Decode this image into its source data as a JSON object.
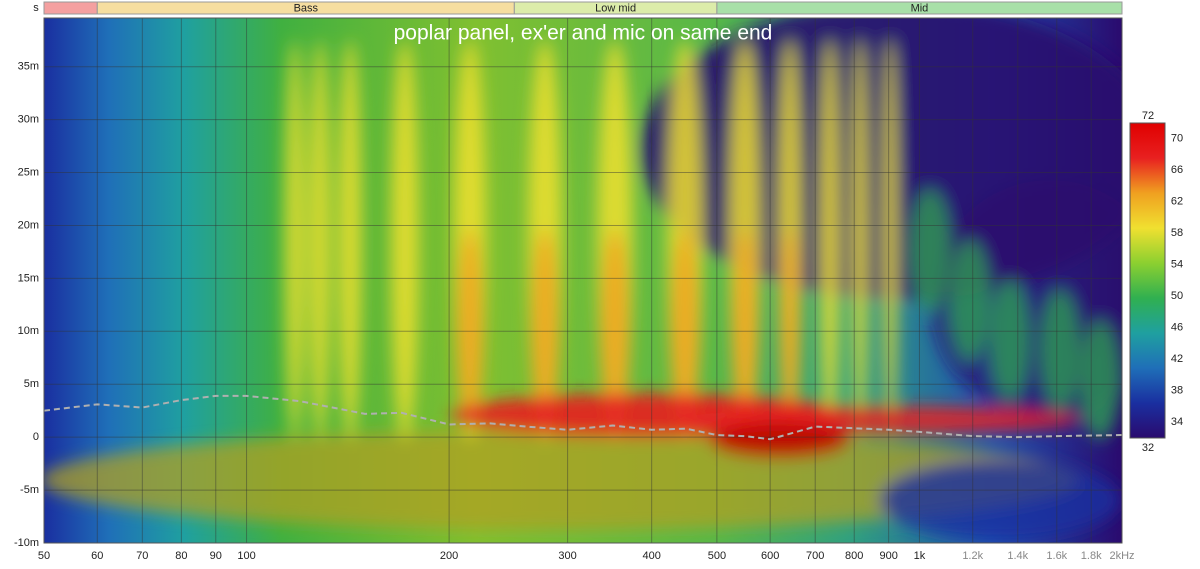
{
  "chart_data": {
    "type": "spectrogram",
    "title": "poplar panel, ex'er and mic on same end",
    "ylabel": "s",
    "log_x": true,
    "grid": true,
    "xlim": [
      50,
      2000
    ],
    "xticks": [
      50,
      60,
      70,
      80,
      90,
      100,
      200,
      300,
      400,
      500,
      600,
      700,
      800,
      900,
      {
        "value": 1000,
        "label": "1k"
      },
      {
        "value": 1200,
        "label": "1.2k"
      },
      {
        "value": 1400,
        "label": "1.4k"
      },
      {
        "value": 1600,
        "label": "1.6k"
      },
      {
        "value": 1800,
        "label": "1.8k"
      },
      {
        "value": 2000,
        "label": "2kHz"
      }
    ],
    "ylim": [
      -0.01,
      0.0396
    ],
    "yticks": [
      {
        "value": -0.01,
        "label": "-10m"
      },
      {
        "value": -0.005,
        "label": "-5m"
      },
      0,
      {
        "value": 0.005,
        "label": "5m"
      },
      {
        "value": 0.01,
        "label": "10m"
      },
      {
        "value": 0.015,
        "label": "15m"
      },
      {
        "value": 0.02,
        "label": "20m"
      },
      {
        "value": 0.025,
        "label": "25m"
      },
      {
        "value": 0.03,
        "label": "30m"
      },
      {
        "value": 0.035,
        "label": "35m"
      }
    ],
    "bands": [
      {
        "name": null,
        "range": [
          50,
          60
        ],
        "color": "#f4a0a0"
      },
      {
        "name": "Bass",
        "range": [
          60,
          250
        ],
        "color": "#f6dea0"
      },
      {
        "name": "Low mid",
        "range": [
          250,
          500
        ],
        "color": "#dcecaa"
      },
      {
        "name": "Mid",
        "range": [
          500,
          2000
        ],
        "color": "#a8e0a8"
      }
    ],
    "colorbar": {
      "lim": [
        32,
        72
      ],
      "ticks": [
        34,
        38,
        42,
        46,
        50,
        54,
        58,
        62,
        66,
        70
      ],
      "colormap": [
        "#2a0a6e",
        "#1a2fa0",
        "#1f6fb8",
        "#1fa0a0",
        "#30b050",
        "#8cd030",
        "#f0e030",
        "#f0a020",
        "#e82020",
        "#e00000"
      ]
    },
    "series": [
      {
        "color": "#b0b0b0",
        "x": [
          50,
          60,
          70,
          80,
          90,
          100,
          120,
          150,
          170,
          200,
          230,
          260,
          300,
          350,
          400,
          450,
          500,
          550,
          600,
          700,
          900,
          1000,
          1200,
          1400,
          1600,
          2000
        ],
        "values": [
          0.0025,
          0.0031,
          0.0028,
          0.0035,
          0.0039,
          0.0039,
          0.0034,
          0.0022,
          0.0023,
          0.0012,
          0.0013,
          0.001,
          0.0007,
          0.0011,
          0.0007,
          0.0008,
          0.0002,
          0.0001,
          -0.0002,
          0.001,
          0.0007,
          0.0005,
          0.0001,
          0,
          0.0001,
          0.0002
        ]
      }
    ]
  }
}
